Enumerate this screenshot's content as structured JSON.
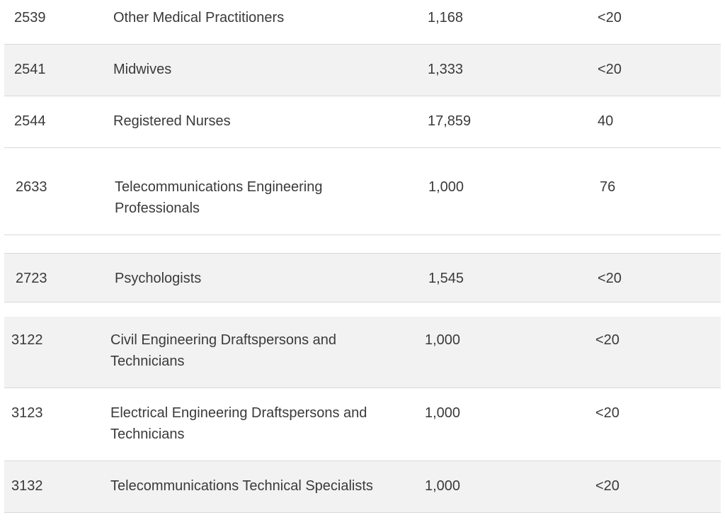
{
  "rows": [
    {
      "code": "2539",
      "occupation": "Other Medical Practitioners",
      "value": "1,168",
      "count": "<20"
    },
    {
      "code": "2541",
      "occupation": "Midwives",
      "value": "1,333",
      "count": "<20"
    },
    {
      "code": "2544",
      "occupation": "Registered Nurses",
      "value": "17,859",
      "count": "40"
    },
    {
      "code": "2633",
      "occupation": "Telecommunications Engineering Professionals",
      "value": "1,000",
      "count": "76"
    },
    {
      "code": "2723",
      "occupation": "Psychologists",
      "value": "1,545",
      "count": "<20"
    },
    {
      "code": "3122",
      "occupation": "Civil Engineering Draftspersons and Technicians",
      "value": "1,000",
      "count": "<20"
    },
    {
      "code": "3123",
      "occupation": "Electrical Engineering Draftspersons and Technicians",
      "value": "1,000",
      "count": "<20"
    },
    {
      "code": "3132",
      "occupation": "Telecommunications Technical Specialists",
      "value": "1,000",
      "count": "<20"
    }
  ]
}
